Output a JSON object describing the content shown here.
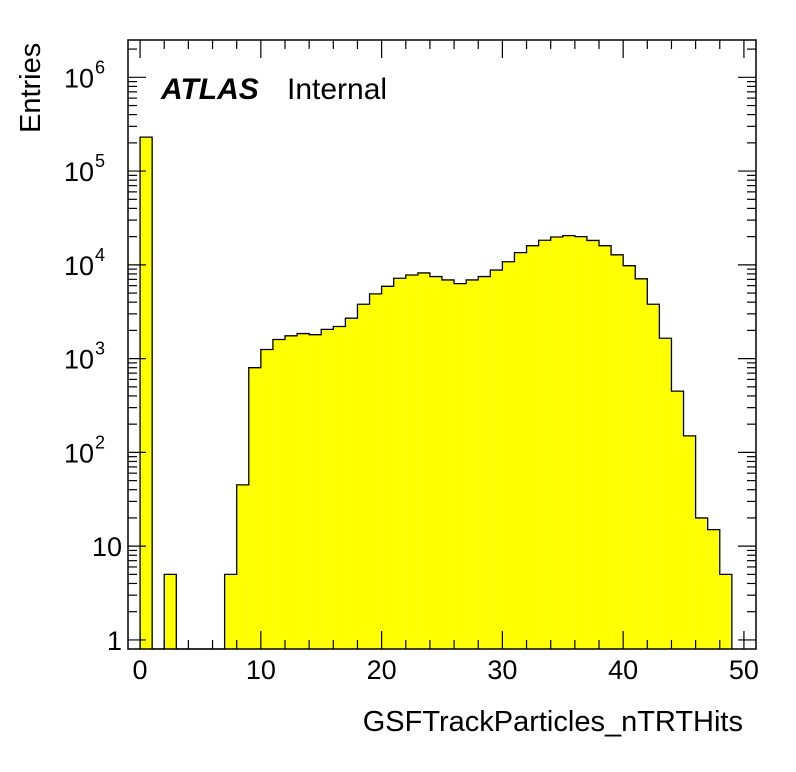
{
  "chart_data": {
    "type": "histogram",
    "title": "",
    "xlabel": "GSFTrackParticles_nTRTHits",
    "ylabel": "Entries",
    "label": {
      "experiment": "ATLAS",
      "status": "Internal"
    },
    "xlim": [
      -1,
      51
    ],
    "ylim": [
      0.8,
      2500000
    ],
    "yscale": "log",
    "fill_color": "#ffff00",
    "line_color": "#000000",
    "bin_width": 1,
    "bin_edges_start": 0,
    "values": [
      230000,
      0,
      5,
      0,
      0,
      0,
      0,
      5,
      45,
      800,
      1250,
      1600,
      1750,
      1850,
      1800,
      2050,
      2200,
      2700,
      3800,
      4900,
      5900,
      7200,
      7800,
      8200,
      7500,
      6900,
      6300,
      6900,
      7500,
      8800,
      10800,
      13500,
      16000,
      18300,
      19800,
      20500,
      20000,
      18200,
      16000,
      12800,
      9800,
      7100,
      3800,
      1650,
      450,
      150,
      20,
      15,
      5
    ],
    "x_ticks": [
      0,
      10,
      20,
      30,
      40,
      50
    ],
    "x_tick_labels": [
      "0",
      "10",
      "20",
      "30",
      "40",
      "50"
    ],
    "y_ticks": [
      1,
      10,
      100,
      1000,
      10000,
      100000,
      1000000
    ],
    "y_tick_labels": [
      {
        "base": "1",
        "exp": ""
      },
      {
        "base": "10",
        "exp": ""
      },
      {
        "base": "10",
        "exp": "2"
      },
      {
        "base": "10",
        "exp": "3"
      },
      {
        "base": "10",
        "exp": "4"
      },
      {
        "base": "10",
        "exp": "5"
      },
      {
        "base": "10",
        "exp": "6"
      }
    ]
  }
}
